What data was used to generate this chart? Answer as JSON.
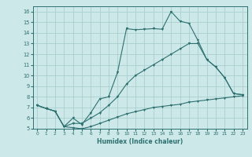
{
  "title": "",
  "xlabel": "Humidex (Indice chaleur)",
  "xlim": [
    -0.5,
    23.5
  ],
  "ylim": [
    5,
    16.5
  ],
  "xticks": [
    0,
    1,
    2,
    3,
    4,
    5,
    6,
    7,
    8,
    9,
    10,
    11,
    12,
    13,
    14,
    15,
    16,
    17,
    18,
    19,
    20,
    21,
    22,
    23
  ],
  "yticks": [
    5,
    6,
    7,
    8,
    9,
    10,
    11,
    12,
    13,
    14,
    15,
    16
  ],
  "bg_color": "#cce8e8",
  "line_color": "#2e7070",
  "grid_color": "#aacece",
  "line1_x": [
    0,
    1,
    2,
    3,
    4,
    5,
    6,
    7,
    8,
    9,
    10,
    11,
    12,
    13,
    14,
    15,
    16,
    17,
    18,
    19,
    20,
    21,
    22,
    23
  ],
  "line1_y": [
    7.2,
    6.9,
    6.65,
    5.2,
    6.0,
    5.4,
    6.5,
    7.8,
    8.0,
    10.3,
    14.4,
    14.3,
    14.35,
    14.4,
    14.35,
    16.0,
    15.1,
    14.9,
    13.3,
    11.5,
    10.8,
    9.8,
    8.3,
    8.2
  ],
  "line2_x": [
    0,
    1,
    2,
    3,
    4,
    5,
    6,
    7,
    8,
    9,
    10,
    11,
    12,
    13,
    14,
    15,
    16,
    17,
    18,
    19,
    20,
    21,
    22,
    23
  ],
  "line2_y": [
    7.2,
    6.9,
    6.65,
    5.2,
    5.5,
    5.5,
    6.0,
    6.5,
    7.2,
    8.0,
    9.2,
    10.0,
    10.5,
    11.0,
    11.5,
    12.0,
    12.5,
    13.0,
    13.0,
    11.5,
    10.8,
    9.8,
    8.3,
    8.2
  ],
  "line3_x": [
    0,
    1,
    2,
    3,
    4,
    5,
    6,
    7,
    8,
    9,
    10,
    11,
    12,
    13,
    14,
    15,
    16,
    17,
    18,
    19,
    20,
    21,
    22,
    23
  ],
  "line3_y": [
    7.2,
    6.9,
    6.65,
    5.2,
    5.1,
    5.0,
    5.2,
    5.5,
    5.8,
    6.1,
    6.4,
    6.6,
    6.8,
    7.0,
    7.1,
    7.2,
    7.3,
    7.5,
    7.6,
    7.7,
    7.8,
    7.9,
    8.0,
    8.1
  ]
}
